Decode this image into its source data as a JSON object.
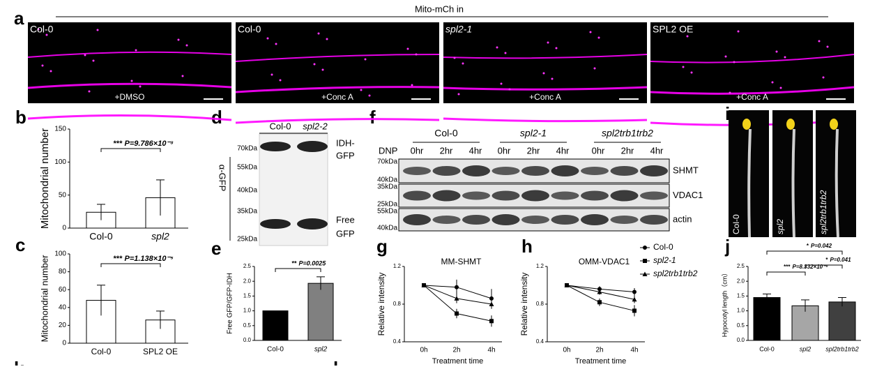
{
  "panel_labels": [
    "a",
    "b",
    "c",
    "d",
    "e",
    "f",
    "g",
    "h",
    "i",
    "j",
    "k",
    "l"
  ],
  "a": {
    "title": "Mito-mCh in",
    "images": [
      {
        "label": "Col-0",
        "treatment": "+DMSO"
      },
      {
        "label": "Col-0",
        "treatment": "+Conc A"
      },
      {
        "label": "spl2-1",
        "treatment": "+Conc A"
      },
      {
        "label": "SPL2 OE",
        "treatment": "+Conc A"
      }
    ]
  },
  "b": {
    "chart_data": {
      "type": "bar",
      "y_label": "Mitochondrial number",
      "categories": [
        "Col-0",
        "spl2"
      ],
      "values": [
        24,
        46
      ],
      "errors": [
        12,
        27
      ],
      "colors": [
        "#ffffff",
        "#ffffff"
      ],
      "ylim": [
        0,
        150
      ],
      "yticks": [
        0,
        50,
        100,
        150
      ],
      "significance": [
        {
          "stars": "***",
          "p": "P=9.786×10⁻⁸"
        }
      ]
    }
  },
  "c": {
    "chart_data": {
      "type": "bar",
      "y_label": "Mitochondrial number",
      "categories": [
        "Col-0",
        "SPL2 OE"
      ],
      "values": [
        48,
        26
      ],
      "errors": [
        17,
        10
      ],
      "colors": [
        "#ffffff",
        "#ffffff"
      ],
      "ylim": [
        0,
        100
      ],
      "yticks": [
        0,
        20,
        40,
        60,
        80,
        100
      ],
      "significance": [
        {
          "stars": "***",
          "p": "P=1.138×10⁻⁵"
        }
      ]
    }
  },
  "d": {
    "lanes": [
      "Col-0",
      "spl2-2"
    ],
    "antibody": "α-GFP",
    "markers": [
      "70kDa",
      "55kDa",
      "40kDa",
      "35kDa",
      "25kDa"
    ],
    "bands": [
      [
        "IDH-",
        "GFP"
      ],
      [
        "Free",
        "GFP"
      ]
    ]
  },
  "e": {
    "chart_data": {
      "type": "bar",
      "y_label": "Free GFP/GFP-IDH",
      "categories": [
        "Col-0",
        "spl2"
      ],
      "values": [
        1.0,
        1.93
      ],
      "errors": [
        0,
        0.22
      ],
      "colors": [
        "#000000",
        "#808080"
      ],
      "ylim": [
        0,
        2.5
      ],
      "yticks": [
        {
          "value": 0,
          "label": "0.0"
        },
        {
          "value": 0.5,
          "label": "0.5"
        },
        {
          "value": 1,
          "label": "1.0"
        },
        {
          "value": 1.5,
          "label": "1.5"
        },
        {
          "value": 2,
          "label": "2.0"
        },
        {
          "value": 2.5,
          "label": "2.5"
        }
      ],
      "significance": [
        {
          "stars": "**",
          "p": "P=0.0025"
        }
      ]
    }
  },
  "f": {
    "groups": [
      "Col-0",
      "spl2-1",
      "spl2trb1trb2"
    ],
    "treatment": "DNP",
    "times": [
      "0hr",
      "2hr",
      "4hr"
    ],
    "rows": [
      {
        "protein": "SHMT",
        "markers": [
          "70kDa",
          "40kDa"
        ]
      },
      {
        "protein": "VDAC1",
        "markers": [
          "35kDa",
          "25kDa"
        ]
      },
      {
        "protein": "actin",
        "markers": [
          "55kDa",
          "40kDa"
        ]
      }
    ]
  },
  "g": {
    "chart_data": {
      "type": "line",
      "title": "MM-SHMT",
      "y_label": "Relative intensity",
      "x_label": "Treatment time",
      "categories": [
        "0h",
        "2h",
        "4h"
      ],
      "ylim": [
        0.4,
        1.2
      ],
      "yticks": [
        0.4,
        0.8,
        1.2
      ],
      "series": [
        {
          "name": "Col-0",
          "color": "#000000",
          "marker": "circle",
          "values": [
            1,
            0.98,
            0.86
          ],
          "errors": [
            0,
            0.08,
            0.1
          ]
        },
        {
          "name": "spl2-1",
          "color": "#000000",
          "marker": "square",
          "values": [
            1,
            0.7,
            0.62
          ],
          "errors": [
            0,
            0.05,
            0.06
          ]
        },
        {
          "name": "spl2trb1trb2",
          "color": "#000000",
          "marker": "triangle",
          "values": [
            1,
            0.86,
            0.8
          ],
          "errors": [
            0,
            0.05,
            0.05
          ]
        }
      ]
    }
  },
  "h": {
    "chart_data": {
      "type": "line",
      "title": "OMM-VDAC1",
      "y_label": "Relative intensity",
      "x_label": "Treatment time",
      "categories": [
        "0h",
        "2h",
        "4h"
      ],
      "ylim": [
        0.4,
        1.2
      ],
      "yticks": [
        0.4,
        0.8,
        1.2
      ],
      "series": [
        {
          "name": "Col-0",
          "color": "#000000",
          "marker": "circle",
          "values": [
            1,
            0.96,
            0.93
          ],
          "errors": [
            0,
            0.03,
            0.04
          ]
        },
        {
          "name": "spl2-1",
          "color": "#000000",
          "marker": "square",
          "values": [
            1,
            0.82,
            0.73
          ],
          "errors": [
            0,
            0.04,
            0.06
          ]
        },
        {
          "name": "spl2trb1trb2",
          "color": "#000000",
          "marker": "triangle",
          "values": [
            1,
            0.93,
            0.85
          ],
          "errors": [
            0,
            0.03,
            0.04
          ]
        }
      ]
    }
  },
  "i": {
    "labels": [
      "Col-0",
      "spl2",
      "spl2trb1trb2"
    ]
  },
  "j": {
    "chart_data": {
      "type": "bar",
      "y_label": "Hypocotyl length（cm）",
      "categories": [
        "Col-0",
        "spl2",
        "spl2trb1trb2"
      ],
      "values": [
        1.45,
        1.17,
        1.3
      ],
      "errors": [
        0.12,
        0.2,
        0.15
      ],
      "colors": [
        "#000000",
        "#a6a6a6",
        "#404040"
      ],
      "ylim": [
        0,
        2.5
      ],
      "yticks": [
        {
          "value": 0,
          "label": "0.0"
        },
        {
          "value": 0.5,
          "label": "0.5"
        },
        {
          "value": 1,
          "label": "1.0"
        },
        {
          "value": 1.5,
          "label": "1.5"
        },
        {
          "value": 2,
          "label": "2.0"
        },
        {
          "value": 2.5,
          "label": "2.5"
        }
      ],
      "significance": [
        {
          "stars": "*",
          "p": "P=0.042"
        },
        {
          "stars": "***",
          "p": "P=8.332×10⁻⁹"
        },
        {
          "stars": "*",
          "p": "P=0.041"
        }
      ]
    }
  }
}
